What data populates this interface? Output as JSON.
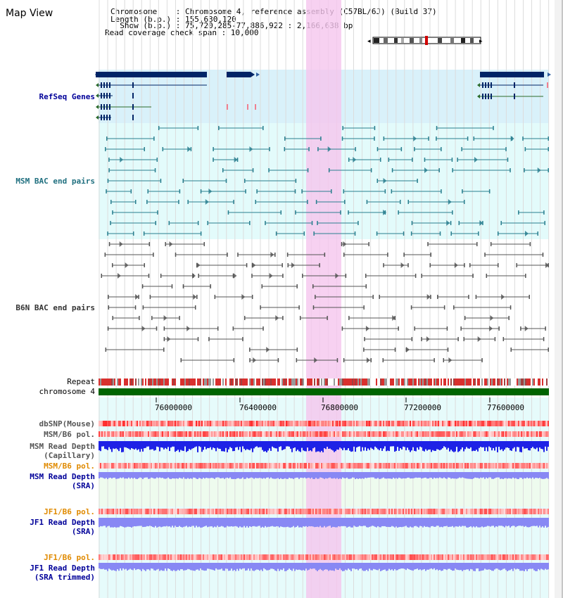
{
  "header": {
    "view_title": "Map View",
    "info_lines": [
      "Chromosome    : Chromosome 4, reference assembly (C57BL/6J) (Build 37)",
      "Length (b.p.) : 155,630,120",
      "  Show (b.p.) : 75,720,285-77,886,922 : 2,166,638 bp",
      "Read coverage check span : 10,000"
    ]
  },
  "colors": {
    "gene_navy": "#002466",
    "refseq_label": "#000099",
    "msm_bac": "#2a7f8f",
    "b6n_bac": "#555555",
    "highlight": "#f5c6ee",
    "gene_panel_bg": "#d9f1fa",
    "msm_panel_bg": "#e3fbfb",
    "repeat_red": "#d9302e",
    "chrom_green": "#006400",
    "depth_blue": "#1e22e6",
    "sra_depth": "#8888f4",
    "pol_orange": "#e08a00"
  },
  "tracks": {
    "refseq_label": "RefSeq Genes",
    "msm_bac_label": "MSM BAC end pairs",
    "b6n_bac_label": "B6N BAC end pairs",
    "repeat_label": "Repeat",
    "chromosome_label": "chromosome 4",
    "dbsnp_label": "dbSNP(Mouse)",
    "msm_b6_pol_label": "MSM/B6 pol.",
    "msm_depth_label_1": "MSM Read Depth",
    "msm_depth_label_2": "(Capillary)",
    "msm_b6_pol_sra_label": "MSM/B6 pol.",
    "msm_sra_label_1": "MSM Read Depth",
    "msm_sra_label_2": "(SRA)",
    "jf1_pol_label": "JF1/B6 pol.",
    "jf1_depth_label_1": "JF1 Read Depth",
    "jf1_depth_label_2": "(SRA)",
    "jf1_pol_trim_label": "JF1/B6 pol.",
    "jf1_trim_label_1": "JF1 Read Depth",
    "jf1_trim_label_2": "(SRA trimmed)"
  },
  "axis": {
    "ticks": [
      "76000000",
      "76400000",
      "76800000",
      "77200000",
      "77600000"
    ]
  }
}
